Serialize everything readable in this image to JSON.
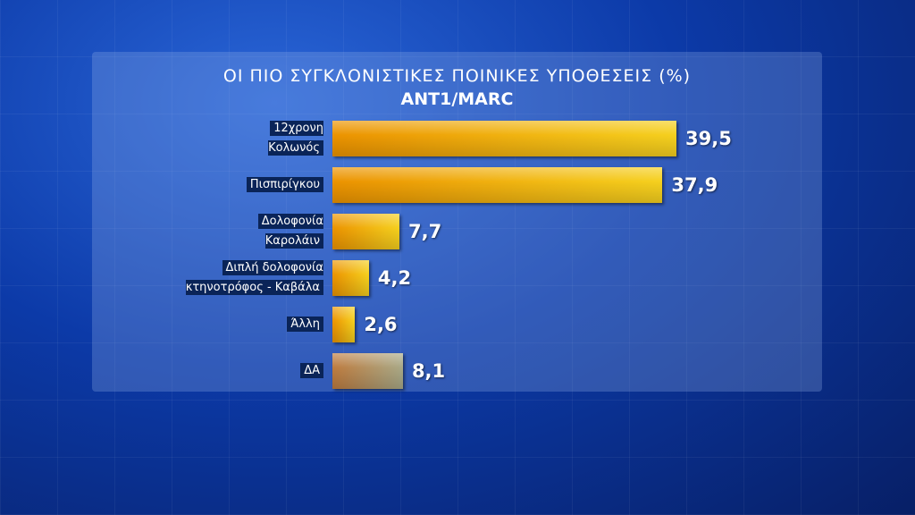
{
  "chart_data": {
    "type": "bar",
    "orientation": "horizontal",
    "title": "ΟΙ ΠΙΟ ΣΥΓΚΛΟΝΙΣΤΙΚΕΣ ΠΟΙΝΙΚΕΣ ΥΠΟΘΕΣΕΙΣ (%)",
    "subtitle": "ANT1/MARC",
    "categories": [
      "12χρονη\nΚολωνός",
      "Πισπιρίγκου",
      "Δολοφονία\nΚαρολάιν",
      "Διπλή δολοφονία\nκτηνοτρόφος - Καβάλα",
      "Άλλη",
      "ΔΑ"
    ],
    "values": [
      39.5,
      37.9,
      7.7,
      4.2,
      2.6,
      8.1
    ],
    "value_labels": [
      "39,5",
      "37,9",
      "7,7",
      "4,2",
      "2,6",
      "8,1"
    ],
    "colors": [
      "#f2c000",
      "#f2c000",
      "#f2c000",
      "#f2c000",
      "#f2c000",
      "#8c8c8c"
    ]
  }
}
